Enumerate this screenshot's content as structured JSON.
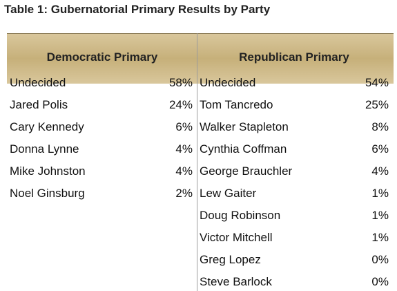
{
  "title": "Table 1: Gubernatorial Primary Results by Party",
  "columns": [
    {
      "header": "Democratic Primary",
      "rows": [
        [
          "Undecided",
          "58%"
        ],
        [
          "Jared Polis",
          "24%"
        ],
        [
          "Cary Kennedy",
          "6%"
        ],
        [
          "Donna Lynne",
          "4%"
        ],
        [
          "Mike Johnston",
          "4%"
        ],
        [
          "Noel Ginsburg",
          "2%"
        ]
      ]
    },
    {
      "header": "Republican Primary",
      "rows": [
        [
          "Undecided",
          "54%"
        ],
        [
          "Tom Tancredo",
          "25%"
        ],
        [
          "Walker Stapleton",
          "8%"
        ],
        [
          "Cynthia Coffman",
          "6%"
        ],
        [
          "George Brauchler",
          "4%"
        ],
        [
          "Lew Gaiter",
          "1%"
        ],
        [
          "Doug Robinson",
          "1%"
        ],
        [
          "Victor Mitchell",
          "1%"
        ],
        [
          "Greg Lopez",
          "0%"
        ],
        [
          "Steve Barlock",
          "0%"
        ]
      ]
    }
  ]
}
